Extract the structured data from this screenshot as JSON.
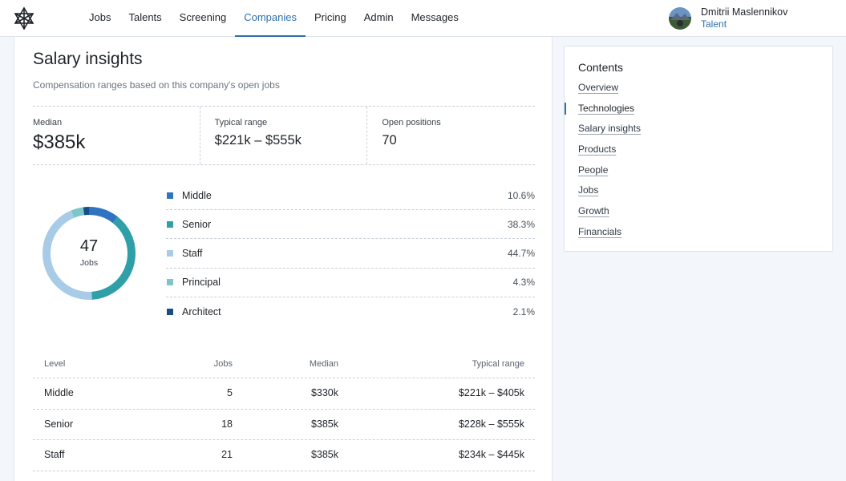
{
  "nav": {
    "items": [
      {
        "label": "Jobs"
      },
      {
        "label": "Talents"
      },
      {
        "label": "Screening"
      },
      {
        "label": "Companies"
      },
      {
        "label": "Pricing"
      },
      {
        "label": "Admin"
      },
      {
        "label": "Messages"
      }
    ],
    "active": "Companies"
  },
  "user": {
    "name": "Dmitrii Maslennikov",
    "role": "Talent"
  },
  "salary": {
    "title": "Salary insights",
    "subtitle": "Compensation ranges based on this company's open jobs",
    "stats": {
      "median_label": "Median",
      "median_value": "$385k",
      "range_label": "Typical range",
      "range_value": "$221k – $555k",
      "open_label": "Open positions",
      "open_value": "70"
    },
    "donut": {
      "total": "47",
      "unit": "Jobs"
    },
    "levels": [
      {
        "name": "Middle",
        "pct": "10.6%",
        "value": 10.6,
        "color": "#2f74c0"
      },
      {
        "name": "Senior",
        "pct": "38.3%",
        "value": 38.3,
        "color": "#2fa0a8"
      },
      {
        "name": "Staff",
        "pct": "44.7%",
        "value": 44.7,
        "color": "#a8cce8"
      },
      {
        "name": "Principal",
        "pct": "4.3%",
        "value": 4.3,
        "color": "#7cc6c9"
      },
      {
        "name": "Architect",
        "pct": "2.1%",
        "value": 2.1,
        "color": "#174e8a"
      }
    ],
    "table": {
      "headers": {
        "level": "Level",
        "jobs": "Jobs",
        "median": "Median",
        "range": "Typical range"
      },
      "rows": [
        {
          "level": "Middle",
          "jobs": "5",
          "median": "$330k",
          "range": "$221k – $405k"
        },
        {
          "level": "Senior",
          "jobs": "18",
          "median": "$385k",
          "range": "$228k – $555k"
        },
        {
          "level": "Staff",
          "jobs": "21",
          "median": "$385k",
          "range": "$234k – $445k"
        }
      ]
    }
  },
  "contents": {
    "title": "Contents",
    "items": [
      {
        "label": "Overview"
      },
      {
        "label": "Technologies"
      },
      {
        "label": "Salary insights"
      },
      {
        "label": "Products"
      },
      {
        "label": "People"
      },
      {
        "label": "Jobs"
      },
      {
        "label": "Growth"
      },
      {
        "label": "Financials"
      }
    ],
    "active": "Technologies"
  }
}
